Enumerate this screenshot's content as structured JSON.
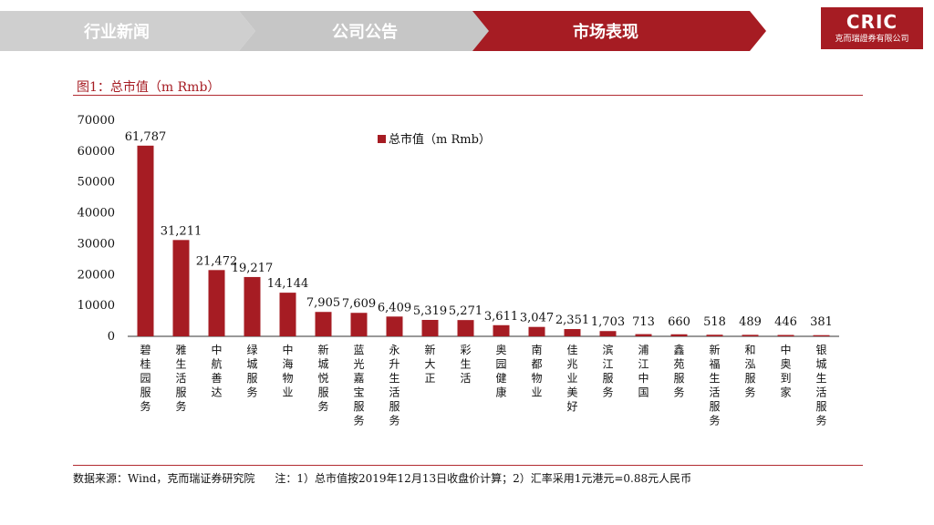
{
  "nav": {
    "tabs": [
      {
        "label": "行业新闻",
        "active": false
      },
      {
        "label": "公司公告",
        "active": false
      },
      {
        "label": "市场表现",
        "active": true
      }
    ]
  },
  "logo": {
    "mark": "CRIC",
    "sub": "克而瑞證券有限公司"
  },
  "figure": {
    "title": "图1：总市值（m Rmb）"
  },
  "footer": {
    "source": "数据来源：Wind，克而瑞证券研究院",
    "note": "注：1）总市值按2019年12月13日收盘价计算；2）汇率采用1元港元=0.88元人民币"
  },
  "colors": {
    "accent": "#a61c23",
    "bar": "#a61c23"
  },
  "chart_data": {
    "type": "bar",
    "title": "",
    "xlabel": "",
    "ylabel": "",
    "ylim": [
      0,
      70000
    ],
    "yticks": [
      0,
      10000,
      20000,
      30000,
      40000,
      50000,
      60000,
      70000
    ],
    "legend": {
      "label": "总市值（m Rmb）",
      "position": "top-center"
    },
    "categories": [
      "碧桂园服务",
      "雅生活服务",
      "中航善达",
      "绿城服务",
      "中海物业",
      "新城悦服务",
      "蓝光嘉宝服务",
      "永升生活服务",
      "新大正",
      "彩生活",
      "奥园健康",
      "南都物业",
      "佳兆业美好",
      "滨江服务",
      "浦江中国",
      "鑫苑服务",
      "新福生活服务",
      "和泓服务",
      "中奥到家",
      "银城生活服务"
    ],
    "values": [
      61787,
      31211,
      21472,
      19217,
      14144,
      7905,
      7609,
      6409,
      5319,
      5271,
      3611,
      3047,
      2351,
      1703,
      713,
      660,
      518,
      489,
      446,
      381
    ],
    "labels": [
      "61,787",
      "31,211",
      "21,472",
      "19,217",
      "14,144",
      "7,905",
      "7,609",
      "6,409",
      "5,319",
      "5,271",
      "3,611",
      "3,047",
      "2,351",
      "1,703",
      "713",
      "660",
      "518",
      "489",
      "446",
      "381"
    ]
  }
}
